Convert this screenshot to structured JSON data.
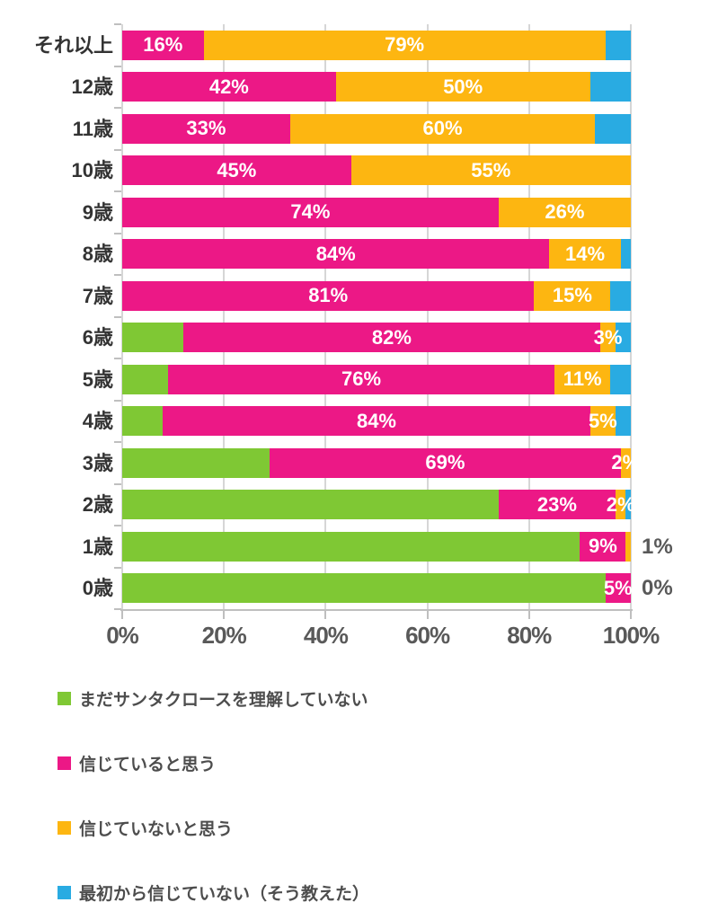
{
  "chart_data": {
    "type": "bar",
    "orientation": "horizontal",
    "stacked": true,
    "unit": "%",
    "xlim": [
      0,
      100
    ],
    "grid": true,
    "legend_position": "bottom",
    "x_ticks": [
      "0%",
      "20%",
      "40%",
      "60%",
      "80%",
      "100%"
    ],
    "categories": [
      "それ以上",
      "12歳",
      "11歳",
      "10歳",
      "9歳",
      "8歳",
      "7歳",
      "6歳",
      "5歳",
      "4歳",
      "3歳",
      "2歳",
      "1歳",
      "0歳"
    ],
    "series": [
      {
        "name": "まだサンタクロースを理解していない",
        "color": "#7FC834",
        "values": [
          0,
          0,
          0,
          0,
          0,
          0,
          0,
          12,
          9,
          8,
          29,
          74,
          90,
          95
        ]
      },
      {
        "name": "信じていると思う",
        "color": "#EC1886",
        "values": [
          16,
          42,
          33,
          45,
          74,
          84,
          81,
          82,
          76,
          84,
          69,
          23,
          9,
          5
        ]
      },
      {
        "name": "信じていないと思う",
        "color": "#FDB611",
        "values": [
          79,
          50,
          60,
          55,
          26,
          14,
          15,
          3,
          11,
          5,
          2,
          2,
          1,
          0
        ]
      },
      {
        "name": "最初から信じていない（そう教えた）",
        "color": "#29ABE2",
        "values": [
          5,
          8,
          7,
          0,
          0,
          2,
          4,
          3,
          4,
          3,
          0,
          1,
          0,
          0
        ]
      }
    ],
    "rows": [
      {
        "category": "それ以上",
        "values": [
          0,
          16,
          79,
          5
        ],
        "labels": {
          "1": "16%",
          "2": "79%"
        },
        "outside_label": null
      },
      {
        "category": "12歳",
        "values": [
          0,
          42,
          50,
          8
        ],
        "labels": {
          "1": "42%",
          "2": "50%"
        },
        "outside_label": null
      },
      {
        "category": "11歳",
        "values": [
          0,
          33,
          60,
          7
        ],
        "labels": {
          "1": "33%",
          "2": "60%"
        },
        "outside_label": null
      },
      {
        "category": "10歳",
        "values": [
          0,
          45,
          55,
          0
        ],
        "labels": {
          "1": "45%",
          "2": "55%"
        },
        "outside_label": null
      },
      {
        "category": "9歳",
        "values": [
          0,
          74,
          26,
          0
        ],
        "labels": {
          "1": "74%",
          "2": "26%"
        },
        "outside_label": null
      },
      {
        "category": "8歳",
        "values": [
          0,
          84,
          14,
          2
        ],
        "labels": {
          "1": "84%",
          "2": "14%"
        },
        "outside_label": null
      },
      {
        "category": "7歳",
        "values": [
          0,
          81,
          15,
          4
        ],
        "labels": {
          "1": "81%",
          "2": "15%"
        },
        "outside_label": null
      },
      {
        "category": "6歳",
        "values": [
          12,
          82,
          3,
          3
        ],
        "labels": {
          "1": "82%",
          "2": "3%"
        },
        "outside_label": null
      },
      {
        "category": "5歳",
        "values": [
          9,
          76,
          11,
          4
        ],
        "labels": {
          "1": "76%",
          "2": "11%"
        },
        "outside_label": null
      },
      {
        "category": "4歳",
        "values": [
          8,
          84,
          5,
          3
        ],
        "labels": {
          "1": "84%",
          "2": "5%"
        },
        "outside_label": null
      },
      {
        "category": "3歳",
        "values": [
          29,
          69,
          2,
          0
        ],
        "labels": {
          "1": "69%",
          "2": "2%"
        },
        "outside_label": null
      },
      {
        "category": "2歳",
        "values": [
          74,
          23,
          2,
          1
        ],
        "labels": {
          "1": "23%",
          "2": "2%"
        },
        "outside_label": null
      },
      {
        "category": "1歳",
        "values": [
          90,
          9,
          1,
          0
        ],
        "labels": {
          "1": "9%"
        },
        "outside_label": "1%"
      },
      {
        "category": "0歳",
        "values": [
          95,
          5,
          0,
          0
        ],
        "labels": {
          "1": "5%"
        },
        "outside_label": "0%"
      }
    ],
    "colors": {
      "grid": "#D6D6D6",
      "axis": "#BFBFBF",
      "axis_text": "#595959",
      "category_text": "#333333",
      "legend_text": "#4D4D4D",
      "bar_label_text": "#FFFFFF"
    }
  }
}
